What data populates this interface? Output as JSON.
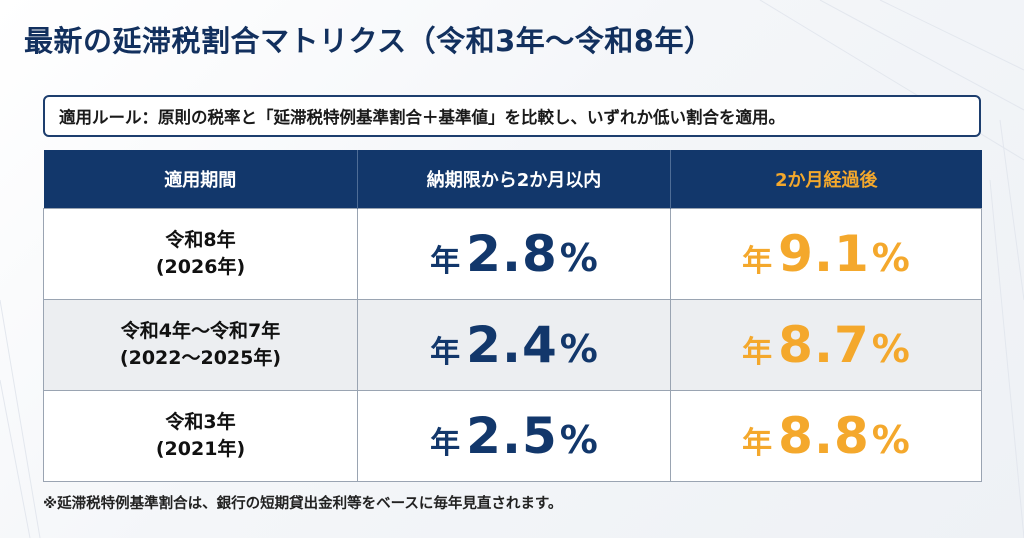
{
  "title": "最新の延滞税割合マトリクス（令和3年〜令和8年）",
  "rule": "適用ルール：原則の税率と「延滞税特例基準割合＋基準値」を比較し、いずれか低い割合を適用。",
  "table": {
    "headers": [
      "適用期間",
      "納期限から2か月以内",
      "2か月経過後"
    ],
    "rows": [
      {
        "period_line1": "令和8年",
        "period_line2": "(2026年)",
        "within_prefix": "年",
        "within_value": "2.8",
        "within_unit": "%",
        "after_prefix": "年",
        "after_value": "9.1",
        "after_unit": "%"
      },
      {
        "period_line1": "令和4年〜令和7年",
        "period_line2": "(2022〜2025年)",
        "within_prefix": "年",
        "within_value": "2.4",
        "within_unit": "%",
        "after_prefix": "年",
        "after_value": "8.7",
        "after_unit": "%"
      },
      {
        "period_line1": "令和3年",
        "period_line2": "(2021年)",
        "within_prefix": "年",
        "within_value": "2.5",
        "within_unit": "%",
        "after_prefix": "年",
        "after_value": "8.8",
        "after_unit": "%"
      }
    ]
  },
  "footnote": "※延滞税特例基準割合は、銀行の短期貸出金利等をベースに毎年見直されます。",
  "colors": {
    "navy": "#12376b",
    "orange": "#f4a82c",
    "title": "#12305e"
  }
}
